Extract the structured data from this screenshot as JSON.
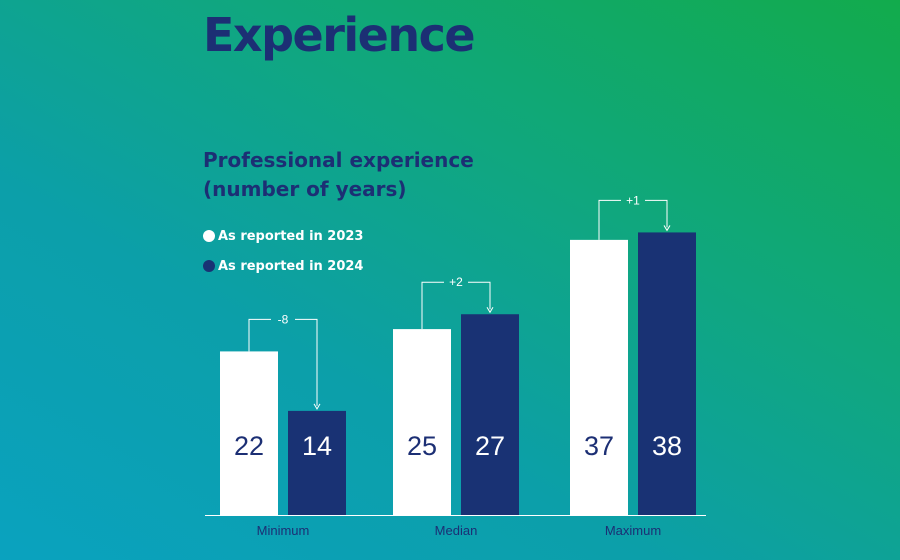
{
  "page": {
    "title": "Experience"
  },
  "chart_data": {
    "type": "bar",
    "title_lines": [
      "Professional experience",
      "(number of years)"
    ],
    "categories": [
      "Minimum",
      "Median",
      "Maximum"
    ],
    "series": [
      {
        "name": "As reported in 2023",
        "values": [
          22,
          25,
          37
        ],
        "color": "#ffffff",
        "label_color": "#1c2f74"
      },
      {
        "name": "As reported in 2024",
        "values": [
          14,
          27,
          38
        ],
        "color": "#193274",
        "label_color": "#ffffff"
      }
    ],
    "changes": [
      "-8",
      "+2",
      "+1"
    ],
    "ylim": [
      0,
      39
    ],
    "grid": false,
    "legend_position": "top-left"
  }
}
